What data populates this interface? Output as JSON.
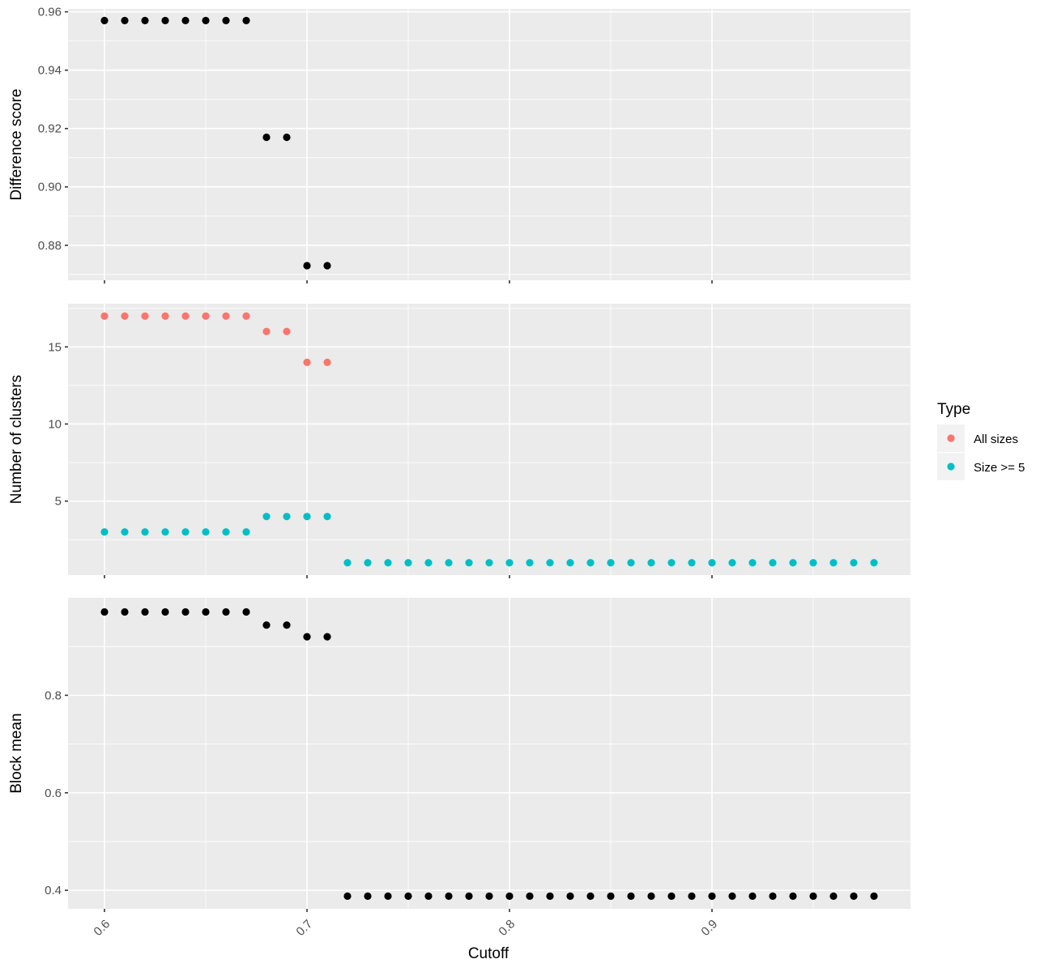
{
  "chart_data": {
    "type": "scatter",
    "x_label": "Cutoff",
    "x_ticks": [
      0.6,
      0.7,
      0.8,
      0.9
    ],
    "x_range": [
      0.582,
      0.998
    ],
    "grid": true,
    "legend_position": "right",
    "legend": {
      "title": "Type",
      "entries": [
        {
          "label": "All sizes",
          "color": "#F8766D"
        },
        {
          "label": "Size >= 5",
          "color": "#00BFC4"
        }
      ]
    },
    "panels": [
      {
        "id": "diff",
        "ylabel": "Difference score",
        "y_ticks": [
          0.88,
          0.9,
          0.92,
          0.94,
          0.96
        ],
        "y_range": [
          0.868,
          0.961
        ],
        "series": [
          {
            "color": "#000000",
            "x": [
              0.6,
              0.61,
              0.62,
              0.63,
              0.64,
              0.65,
              0.66,
              0.67,
              0.68,
              0.69,
              0.7,
              0.71
            ],
            "y": [
              0.957,
              0.957,
              0.957,
              0.957,
              0.957,
              0.957,
              0.957,
              0.957,
              0.917,
              0.917,
              0.873,
              0.873
            ]
          }
        ]
      },
      {
        "id": "clusters",
        "ylabel": "Number of clusters",
        "y_ticks": [
          5,
          10,
          15
        ],
        "y_range": [
          0.2,
          17.8
        ],
        "series": [
          {
            "legend_index": 0,
            "color": "#F8766D",
            "x": [
              0.6,
              0.61,
              0.62,
              0.63,
              0.64,
              0.65,
              0.66,
              0.67,
              0.68,
              0.69,
              0.7,
              0.71
            ],
            "y": [
              17,
              17,
              17,
              17,
              17,
              17,
              17,
              17,
              16,
              16,
              14,
              14
            ]
          },
          {
            "legend_index": 1,
            "color": "#00BFC4",
            "x": [
              0.6,
              0.61,
              0.62,
              0.63,
              0.64,
              0.65,
              0.66,
              0.67,
              0.68,
              0.69,
              0.7,
              0.71,
              0.72,
              0.73,
              0.74,
              0.75,
              0.76,
              0.77,
              0.78,
              0.79,
              0.8,
              0.81,
              0.82,
              0.83,
              0.84,
              0.85,
              0.86,
              0.87,
              0.88,
              0.89,
              0.9,
              0.91,
              0.92,
              0.93,
              0.94,
              0.95,
              0.96,
              0.97,
              0.98
            ],
            "y": [
              3,
              3,
              3,
              3,
              3,
              3,
              3,
              3,
              4,
              4,
              4,
              4,
              1,
              1,
              1,
              1,
              1,
              1,
              1,
              1,
              1,
              1,
              1,
              1,
              1,
              1,
              1,
              1,
              1,
              1,
              1,
              1,
              1,
              1,
              1,
              1,
              1,
              1,
              1
            ]
          }
        ]
      },
      {
        "id": "block",
        "ylabel": "Block mean",
        "y_ticks": [
          0.4,
          0.6,
          0.8
        ],
        "y_range": [
          0.362,
          1.0
        ],
        "series": [
          {
            "color": "#000000",
            "x": [
              0.6,
              0.61,
              0.62,
              0.63,
              0.64,
              0.65,
              0.66,
              0.67,
              0.68,
              0.69,
              0.7,
              0.71,
              0.72,
              0.73,
              0.74,
              0.75,
              0.76,
              0.77,
              0.78,
              0.79,
              0.8,
              0.81,
              0.82,
              0.83,
              0.84,
              0.85,
              0.86,
              0.87,
              0.88,
              0.89,
              0.9,
              0.91,
              0.92,
              0.93,
              0.94,
              0.95,
              0.96,
              0.97,
              0.98
            ],
            "y": [
              0.971,
              0.971,
              0.971,
              0.971,
              0.971,
              0.971,
              0.971,
              0.971,
              0.944,
              0.944,
              0.92,
              0.92,
              0.388,
              0.388,
              0.388,
              0.388,
              0.388,
              0.388,
              0.388,
              0.388,
              0.388,
              0.388,
              0.388,
              0.388,
              0.388,
              0.388,
              0.388,
              0.388,
              0.388,
              0.388,
              0.388,
              0.388,
              0.388,
              0.388,
              0.388,
              0.388,
              0.388,
              0.388,
              0.388
            ]
          }
        ]
      }
    ]
  }
}
